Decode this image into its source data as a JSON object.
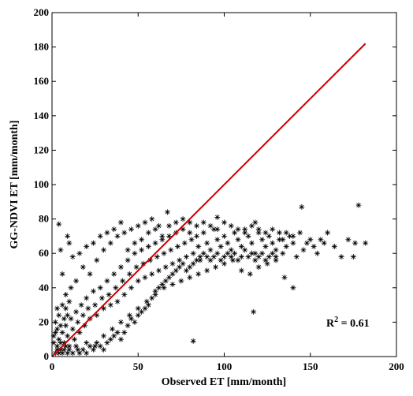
{
  "chart_data": {
    "type": "scatter",
    "xlabel": "Observed ET [mm/month]",
    "ylabel": "GG-NDVI ET [mm/month]",
    "xlim": [
      0,
      200
    ],
    "ylim": [
      0,
      200
    ],
    "xticks": [
      "0",
      "50",
      "100",
      "150",
      "200"
    ],
    "yticks": [
      "0",
      "20",
      "40",
      "60",
      "80",
      "100",
      "120",
      "140",
      "160",
      "180",
      "200"
    ],
    "grid": false,
    "legend": "none",
    "annotation": {
      "base": "R",
      "sup": "2",
      "rest": " = 0.61"
    },
    "fit_line": {
      "x": [
        0,
        182
      ],
      "y": [
        0,
        182
      ],
      "color": "#cc0000"
    },
    "marker": "*",
    "marker_color": "#000000",
    "series": [
      {
        "points": [
          [
            2,
            2
          ],
          [
            3,
            6
          ],
          [
            4,
            10
          ],
          [
            5,
            4
          ],
          [
            6,
            14
          ],
          [
            7,
            8
          ],
          [
            8,
            18
          ],
          [
            9,
            12
          ],
          [
            10,
            6
          ],
          [
            11,
            22
          ],
          [
            12,
            16
          ],
          [
            13,
            10
          ],
          [
            14,
            26
          ],
          [
            15,
            20
          ],
          [
            16,
            14
          ],
          [
            17,
            30
          ],
          [
            18,
            24
          ],
          [
            19,
            18
          ],
          [
            20,
            34
          ],
          [
            21,
            28
          ],
          [
            22,
            22
          ],
          [
            24,
            38
          ],
          [
            25,
            30
          ],
          [
            26,
            24
          ],
          [
            28,
            40
          ],
          [
            29,
            34
          ],
          [
            30,
            28
          ],
          [
            32,
            44
          ],
          [
            33,
            36
          ],
          [
            34,
            30
          ],
          [
            36,
            48
          ],
          [
            37,
            40
          ],
          [
            38,
            32
          ],
          [
            40,
            52
          ],
          [
            41,
            44
          ],
          [
            42,
            36
          ],
          [
            44,
            56
          ],
          [
            45,
            48
          ],
          [
            46,
            40
          ],
          [
            48,
            60
          ],
          [
            49,
            52
          ],
          [
            50,
            44
          ],
          [
            52,
            62
          ],
          [
            53,
            54
          ],
          [
            54,
            46
          ],
          [
            56,
            64
          ],
          [
            57,
            56
          ],
          [
            58,
            48
          ],
          [
            60,
            66
          ],
          [
            61,
            58
          ],
          [
            62,
            50
          ],
          [
            64,
            68
          ],
          [
            65,
            60
          ],
          [
            66,
            52
          ],
          [
            68,
            70
          ],
          [
            69,
            62
          ],
          [
            70,
            54
          ],
          [
            72,
            72
          ],
          [
            73,
            64
          ],
          [
            74,
            56
          ],
          [
            76,
            74
          ],
          [
            77,
            66
          ],
          [
            78,
            58
          ],
          [
            80,
            72
          ],
          [
            81,
            68
          ],
          [
            82,
            60
          ],
          [
            84,
            70
          ],
          [
            85,
            64
          ],
          [
            86,
            56
          ],
          [
            88,
            72
          ],
          [
            90,
            66
          ],
          [
            92,
            62
          ],
          [
            94,
            74
          ],
          [
            96,
            68
          ],
          [
            98,
            64
          ],
          [
            100,
            70
          ],
          [
            102,
            66
          ],
          [
            104,
            62
          ],
          [
            106,
            72
          ],
          [
            108,
            68
          ],
          [
            110,
            64
          ],
          [
            112,
            74
          ],
          [
            114,
            70
          ],
          [
            116,
            66
          ],
          [
            118,
            60
          ],
          [
            120,
            72
          ],
          [
            122,
            68
          ],
          [
            124,
            64
          ],
          [
            126,
            70
          ],
          [
            128,
            66
          ],
          [
            130,
            62
          ],
          [
            132,
            72
          ],
          [
            134,
            68
          ],
          [
            136,
            64
          ],
          [
            138,
            70
          ],
          [
            140,
            66
          ],
          [
            142,
            58
          ],
          [
            144,
            72
          ],
          [
            146,
            62
          ],
          [
            148,
            66
          ],
          [
            150,
            68
          ],
          [
            152,
            64
          ],
          [
            154,
            60
          ],
          [
            156,
            68
          ],
          [
            160,
            72
          ],
          [
            164,
            64
          ],
          [
            168,
            58
          ],
          [
            172,
            68
          ],
          [
            176,
            66
          ],
          [
            178,
            88
          ],
          [
            182,
            66
          ],
          [
            145,
            87
          ],
          [
            118,
            78
          ],
          [
            96,
            81
          ],
          [
            67,
            84
          ],
          [
            40,
            78
          ],
          [
            4,
            77
          ],
          [
            10,
            66
          ],
          [
            12,
            58
          ],
          [
            6,
            48
          ],
          [
            8,
            36
          ],
          [
            3,
            28
          ],
          [
            14,
            44
          ],
          [
            18,
            52
          ],
          [
            22,
            48
          ],
          [
            26,
            56
          ],
          [
            30,
            62
          ],
          [
            34,
            66
          ],
          [
            38,
            70
          ],
          [
            42,
            72
          ],
          [
            46,
            74
          ],
          [
            50,
            76
          ],
          [
            54,
            78
          ],
          [
            58,
            80
          ],
          [
            62,
            76
          ],
          [
            15,
            4
          ],
          [
            20,
            8
          ],
          [
            25,
            6
          ],
          [
            30,
            12
          ],
          [
            35,
            16
          ],
          [
            40,
            20
          ],
          [
            45,
            24
          ],
          [
            50,
            28
          ],
          [
            55,
            32
          ],
          [
            60,
            36
          ],
          [
            65,
            40
          ],
          [
            70,
            42
          ],
          [
            75,
            44
          ],
          [
            80,
            46
          ],
          [
            85,
            48
          ],
          [
            90,
            50
          ],
          [
            95,
            52
          ],
          [
            100,
            54
          ],
          [
            105,
            56
          ],
          [
            110,
            50
          ],
          [
            115,
            48
          ],
          [
            120,
            52
          ],
          [
            125,
            54
          ],
          [
            130,
            56
          ],
          [
            135,
            46
          ],
          [
            140,
            40
          ],
          [
            117,
            26
          ],
          [
            82,
            9
          ],
          [
            175,
            58
          ],
          [
            158,
            66
          ],
          [
            5,
            62
          ],
          [
            9,
            70
          ],
          [
            11,
            40
          ],
          [
            16,
            60
          ],
          [
            20,
            64
          ],
          [
            24,
            66
          ],
          [
            28,
            70
          ],
          [
            32,
            72
          ],
          [
            36,
            74
          ],
          [
            44,
            62
          ],
          [
            48,
            66
          ],
          [
            52,
            68
          ],
          [
            56,
            72
          ],
          [
            60,
            74
          ],
          [
            64,
            70
          ],
          [
            68,
            76
          ],
          [
            72,
            78
          ],
          [
            76,
            80
          ],
          [
            80,
            78
          ],
          [
            84,
            76
          ],
          [
            88,
            78
          ],
          [
            92,
            76
          ],
          [
            96,
            74
          ],
          [
            100,
            78
          ],
          [
            104,
            76
          ],
          [
            108,
            74
          ],
          [
            112,
            72
          ],
          [
            116,
            76
          ],
          [
            120,
            74
          ],
          [
            124,
            72
          ],
          [
            128,
            74
          ],
          [
            132,
            68
          ],
          [
            136,
            72
          ],
          [
            140,
            70
          ],
          [
            2,
            20
          ],
          [
            3,
            16
          ],
          [
            4,
            24
          ],
          [
            5,
            18
          ],
          [
            6,
            30
          ],
          [
            7,
            22
          ],
          [
            8,
            28
          ],
          [
            9,
            24
          ],
          [
            10,
            32
          ],
          [
            1,
            12
          ],
          [
            1,
            8
          ],
          [
            2,
            14
          ],
          [
            3,
            4
          ],
          [
            4,
            2
          ],
          [
            5,
            8
          ],
          [
            6,
            2
          ],
          [
            7,
            4
          ],
          [
            8,
            6
          ],
          [
            9,
            2
          ],
          [
            10,
            4
          ],
          [
            12,
            2
          ],
          [
            14,
            6
          ],
          [
            16,
            2
          ],
          [
            18,
            4
          ],
          [
            20,
            2
          ],
          [
            22,
            6
          ],
          [
            24,
            4
          ],
          [
            26,
            8
          ],
          [
            28,
            6
          ],
          [
            30,
            4
          ],
          [
            32,
            8
          ],
          [
            34,
            10
          ],
          [
            36,
            12
          ],
          [
            38,
            14
          ],
          [
            40,
            10
          ],
          [
            42,
            14
          ],
          [
            44,
            18
          ],
          [
            46,
            22
          ],
          [
            48,
            20
          ],
          [
            50,
            24
          ],
          [
            52,
            26
          ],
          [
            54,
            28
          ],
          [
            56,
            30
          ],
          [
            58,
            34
          ],
          [
            60,
            38
          ],
          [
            62,
            40
          ],
          [
            64,
            42
          ],
          [
            66,
            44
          ],
          [
            68,
            46
          ],
          [
            70,
            48
          ],
          [
            72,
            50
          ],
          [
            74,
            52
          ],
          [
            76,
            54
          ],
          [
            78,
            50
          ],
          [
            80,
            52
          ],
          [
            82,
            54
          ],
          [
            84,
            56
          ],
          [
            86,
            58
          ],
          [
            88,
            60
          ],
          [
            90,
            58
          ],
          [
            92,
            56
          ],
          [
            94,
            58
          ],
          [
            96,
            60
          ],
          [
            98,
            56
          ],
          [
            100,
            58
          ],
          [
            102,
            60
          ],
          [
            104,
            58
          ],
          [
            106,
            60
          ],
          [
            108,
            56
          ],
          [
            110,
            58
          ],
          [
            112,
            62
          ],
          [
            114,
            58
          ],
          [
            116,
            60
          ],
          [
            118,
            56
          ],
          [
            120,
            58
          ],
          [
            122,
            60
          ],
          [
            124,
            56
          ],
          [
            126,
            58
          ],
          [
            128,
            60
          ],
          [
            130,
            58
          ],
          [
            134,
            60
          ]
        ]
      }
    ]
  }
}
